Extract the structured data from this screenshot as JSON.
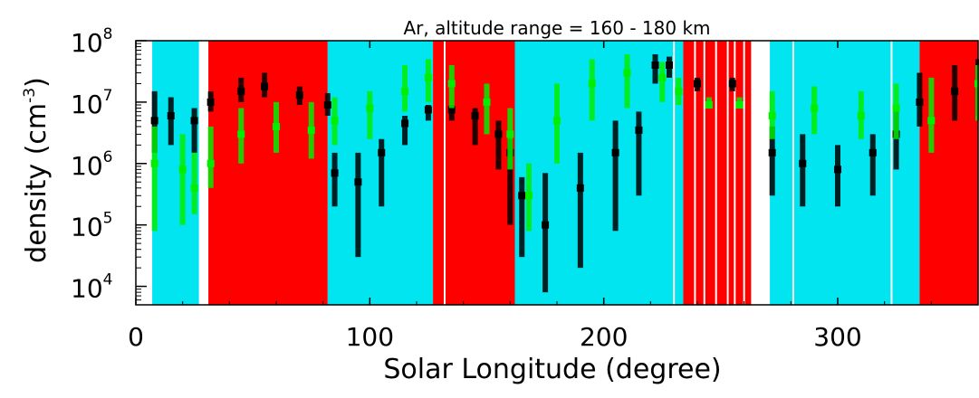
{
  "chart_data": {
    "type": "scatter",
    "title": "Ar, altitude range = 160 - 180 km",
    "xlabel": "Solar Longitude (degree)",
    "ylabel_prefix": "density (cm",
    "ylabel_exponent": "-3",
    "ylabel_suffix": ")",
    "xlim": [
      0,
      360
    ],
    "ylim": [
      5000,
      100000000
    ],
    "yscale": "log",
    "x_ticks": [
      {
        "value": 0,
        "label": "0"
      },
      {
        "value": 100,
        "label": "100"
      },
      {
        "value": 200,
        "label": "200"
      },
      {
        "value": 300,
        "label": "300"
      }
    ],
    "y_ticks": [
      {
        "value": 10000,
        "base": "10",
        "exp": "4"
      },
      {
        "value": 100000,
        "base": "10",
        "exp": "5"
      },
      {
        "value": 1000000,
        "base": "10",
        "exp": "6"
      },
      {
        "value": 10000000,
        "base": "10",
        "exp": "7"
      },
      {
        "value": 100000000,
        "base": "10",
        "exp": "8"
      }
    ],
    "background_bands": [
      {
        "from": 0,
        "to": 7,
        "color": "#ffffff"
      },
      {
        "from": 7,
        "to": 27,
        "color": "#00e5f0"
      },
      {
        "from": 27,
        "to": 31,
        "color": "#ffffff"
      },
      {
        "from": 31,
        "to": 82,
        "color": "#ff0000"
      },
      {
        "from": 82,
        "to": 127,
        "color": "#00e5f0"
      },
      {
        "from": 127,
        "to": 162,
        "color": "#ff0000"
      },
      {
        "from": 162,
        "to": 234,
        "color": "#00e5f0"
      },
      {
        "from": 234,
        "to": 263,
        "color": "#ff0000"
      },
      {
        "from": 263,
        "to": 271,
        "color": "#ffffff"
      },
      {
        "from": 271,
        "to": 335,
        "color": "#00e5f0"
      },
      {
        "from": 335,
        "to": 360,
        "color": "#ff0000"
      }
    ],
    "gap_lines": [
      132,
      230,
      239,
      243,
      248,
      253,
      256,
      260,
      281,
      323
    ],
    "series": [
      {
        "color": "#000000",
        "points": [
          {
            "x": 8,
            "y": 5000000,
            "lo": 1500000,
            "hi": 15000000
          },
          {
            "x": 15,
            "y": 6000000,
            "lo": 2000000,
            "hi": 12000000
          },
          {
            "x": 25,
            "y": 5000000,
            "lo": 1500000,
            "hi": 8000000
          },
          {
            "x": 32,
            "y": 10000000,
            "lo": 7000000,
            "hi": 15000000
          },
          {
            "x": 45,
            "y": 15000000,
            "lo": 10000000,
            "hi": 25000000
          },
          {
            "x": 55,
            "y": 18000000,
            "lo": 12000000,
            "hi": 30000000
          },
          {
            "x": 70,
            "y": 13000000,
            "lo": 9000000,
            "hi": 18000000
          },
          {
            "x": 82,
            "y": 9000000,
            "lo": 6000000,
            "hi": 14000000
          },
          {
            "x": 85,
            "y": 700000,
            "lo": 200000,
            "hi": 1500000
          },
          {
            "x": 95,
            "y": 500000,
            "lo": 30000,
            "hi": 1500000
          },
          {
            "x": 105,
            "y": 1500000,
            "lo": 200000,
            "hi": 2500000
          },
          {
            "x": 115,
            "y": 4500000,
            "lo": 2000000,
            "hi": 6000000
          },
          {
            "x": 125,
            "y": 7500000,
            "lo": 5000000,
            "hi": 9000000
          },
          {
            "x": 135,
            "y": 7500000,
            "lo": 5000000,
            "hi": 9000000
          },
          {
            "x": 145,
            "y": 6000000,
            "lo": 2000000,
            "hi": 8000000
          },
          {
            "x": 155,
            "y": 3000000,
            "lo": 800000,
            "hi": 5000000
          },
          {
            "x": 160,
            "y": 1500000,
            "lo": 100000,
            "hi": 2500000
          },
          {
            "x": 165,
            "y": 300000,
            "lo": 30000,
            "hi": 600000
          },
          {
            "x": 175,
            "y": 100000,
            "lo": 8000,
            "hi": 700000
          },
          {
            "x": 190,
            "y": 400000,
            "lo": 20000,
            "hi": 1500000
          },
          {
            "x": 205,
            "y": 1500000,
            "lo": 80000,
            "hi": 5000000
          },
          {
            "x": 215,
            "y": 3500000,
            "lo": 300000,
            "hi": 7000000
          },
          {
            "x": 222,
            "y": 40000000,
            "lo": 20000000,
            "hi": 60000000
          },
          {
            "x": 228,
            "y": 40000000,
            "lo": 25000000,
            "hi": 55000000
          },
          {
            "x": 240,
            "y": 20000000,
            "lo": 15000000,
            "hi": 25000000
          },
          {
            "x": 255,
            "y": 20000000,
            "lo": 15000000,
            "hi": 25000000
          },
          {
            "x": 272,
            "y": 1500000,
            "lo": 300000,
            "hi": 4000000
          },
          {
            "x": 285,
            "y": 1000000,
            "lo": 200000,
            "hi": 3000000
          },
          {
            "x": 300,
            "y": 800000,
            "lo": 200000,
            "hi": 2000000
          },
          {
            "x": 315,
            "y": 1500000,
            "lo": 300000,
            "hi": 3000000
          },
          {
            "x": 325,
            "y": 3000000,
            "lo": 800000,
            "hi": 8000000
          },
          {
            "x": 335,
            "y": 10000000,
            "lo": 4000000,
            "hi": 30000000
          },
          {
            "x": 350,
            "y": 15000000,
            "lo": 5000000,
            "hi": 40000000
          },
          {
            "x": 360,
            "y": 20000000,
            "lo": 6000000,
            "hi": 50000000
          }
        ]
      },
      {
        "color": "#00ee00",
        "points": [
          {
            "x": 8,
            "y": 1000000,
            "lo": 80000,
            "hi": 4000000
          },
          {
            "x": 20,
            "y": 800000,
            "lo": 100000,
            "hi": 3000000
          },
          {
            "x": 25,
            "y": 400000,
            "lo": 150000,
            "hi": 1500000
          },
          {
            "x": 32,
            "y": 1000000,
            "lo": 400000,
            "hi": 4000000
          },
          {
            "x": 45,
            "y": 3000000,
            "lo": 1000000,
            "hi": 8000000
          },
          {
            "x": 60,
            "y": 4000000,
            "lo": 1500000,
            "hi": 10000000
          },
          {
            "x": 75,
            "y": 3500000,
            "lo": 1200000,
            "hi": 10000000
          },
          {
            "x": 85,
            "y": 5000000,
            "lo": 2000000,
            "hi": 12000000
          },
          {
            "x": 100,
            "y": 8000000,
            "lo": 2500000,
            "hi": 15000000
          },
          {
            "x": 115,
            "y": 15000000,
            "lo": 7000000,
            "hi": 40000000
          },
          {
            "x": 125,
            "y": 25000000,
            "lo": 10000000,
            "hi": 50000000
          },
          {
            "x": 135,
            "y": 20000000,
            "lo": 8000000,
            "hi": 40000000
          },
          {
            "x": 150,
            "y": 10000000,
            "lo": 3000000,
            "hi": 20000000
          },
          {
            "x": 160,
            "y": 3000000,
            "lo": 800000,
            "hi": 8000000
          },
          {
            "x": 168,
            "y": 300000,
            "lo": 80000,
            "hi": 1000000
          },
          {
            "x": 180,
            "y": 5000000,
            "lo": 1000000,
            "hi": 20000000
          },
          {
            "x": 195,
            "y": 20000000,
            "lo": 5000000,
            "hi": 50000000
          },
          {
            "x": 210,
            "y": 30000000,
            "lo": 8000000,
            "hi": 60000000
          },
          {
            "x": 225,
            "y": 25000000,
            "lo": 10000000,
            "hi": 45000000
          },
          {
            "x": 232,
            "y": 15000000,
            "lo": 9000000,
            "hi": 25000000
          },
          {
            "x": 245,
            "y": 9000000,
            "lo": 8000000,
            "hi": 12000000
          },
          {
            "x": 258,
            "y": 9000000,
            "lo": 8000000,
            "hi": 12000000
          },
          {
            "x": 272,
            "y": 6000000,
            "lo": 2500000,
            "hi": 15000000
          },
          {
            "x": 290,
            "y": 8000000,
            "lo": 3000000,
            "hi": 18000000
          },
          {
            "x": 310,
            "y": 6000000,
            "lo": 2500000,
            "hi": 15000000
          },
          {
            "x": 325,
            "y": 8000000,
            "lo": 2500000,
            "hi": 20000000
          },
          {
            "x": 340,
            "y": 5000000,
            "lo": 1500000,
            "hi": 25000000
          },
          {
            "x": 360,
            "y": 20000000,
            "lo": 5000000,
            "hi": 40000000
          }
        ]
      }
    ]
  }
}
